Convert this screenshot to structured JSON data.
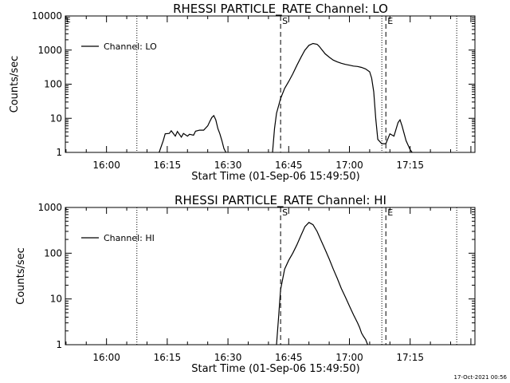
{
  "chart_data": [
    {
      "type": "line",
      "title": "RHESSI PARTICLE_RATE Channel: LO",
      "xlabel": "Start Time (01-Sep-06 15:49:50)",
      "ylabel": "Counts/sec",
      "yscale": "log",
      "xlim": [
        "15:49:50",
        "17:31:00"
      ],
      "ylim": [
        1,
        10000
      ],
      "x_ticks": [
        "16:00",
        "16:15",
        "16:30",
        "16:45",
        "17:00",
        "17:15"
      ],
      "y_ticks": [
        "1",
        "10",
        "100",
        "1000",
        "10000"
      ],
      "legend": {
        "label": "Channel: LO",
        "position": "top-left"
      },
      "grid": false,
      "markers": [
        {
          "time": "16:07:30",
          "style": "dotted",
          "label": ""
        },
        {
          "time": "16:43:00",
          "style": "dashed",
          "label": "S"
        },
        {
          "time": "17:08:00",
          "style": "dotted",
          "label": ""
        },
        {
          "time": "17:09:00",
          "style": "dashed",
          "label": "E"
        },
        {
          "time": "17:26:30",
          "style": "dotted",
          "label": ""
        }
      ],
      "series": [
        {
          "name": "Channel: LO",
          "segments": [
            {
              "x": [
                "16:13:00",
                "16:14:00",
                "16:14:30",
                "16:15:30",
                "16:16:00",
                "16:17:00",
                "16:17:30",
                "16:18:30",
                "16:19:00",
                "16:20:00",
                "16:20:30",
                "16:21:30",
                "16:22:00",
                "16:23:00",
                "16:24:00",
                "16:25:00",
                "16:25:30",
                "16:26:00",
                "16:26:30",
                "16:27:00",
                "16:27:30",
                "16:28:00",
                "16:28:30",
                "16:29:00",
                "16:29:30"
              ],
              "y": [
                1,
                2.2,
                3.5,
                3.6,
                4.3,
                3.0,
                4.1,
                2.8,
                3.6,
                3.0,
                3.4,
                3.2,
                4.2,
                4.5,
                4.5,
                6.0,
                8.0,
                10.5,
                12.0,
                9.0,
                5.0,
                3.5,
                2.2,
                1.3,
                1
              ]
            },
            {
              "x": [
                "16:41:00",
                "16:41:30",
                "16:42:00",
                "16:43:00",
                "16:44:00",
                "16:45:00",
                "16:46:00",
                "16:47:00",
                "16:48:00",
                "16:49:00",
                "16:50:00",
                "16:51:00",
                "16:52:00",
                "16:52:30",
                "16:53:00",
                "16:54:00",
                "16:55:00",
                "16:56:00",
                "16:57:00",
                "16:58:00",
                "16:59:00",
                "17:00:00",
                "17:01:00",
                "17:02:00",
                "17:03:00",
                "17:04:00",
                "17:05:00",
                "17:05:30",
                "17:06:00",
                "17:06:30",
                "17:07:00",
                "17:08:00",
                "17:09:00",
                "17:10:00",
                "17:11:00",
                "17:12:00",
                "17:12:30",
                "17:13:00",
                "17:14:00",
                "17:15:00",
                "17:15:30"
              ],
              "y": [
                1,
                5,
                14,
                38,
                75,
                120,
                200,
                350,
                600,
                1000,
                1380,
                1560,
                1480,
                1300,
                1100,
                780,
                620,
                510,
                450,
                410,
                380,
                360,
                340,
                330,
                310,
                280,
                230,
                150,
                60,
                10,
                2.4,
                1.8,
                1.8,
                3.5,
                3.0,
                7.5,
                9.0,
                6.0,
                2.2,
                1.2,
                1
              ]
            }
          ]
        }
      ],
      "right_edge_labels": [
        "E",
        "-"
      ]
    },
    {
      "type": "line",
      "title": "RHESSI PARTICLE_RATE Channel: HI",
      "xlabel": "Start Time (01-Sep-06 15:49:50)",
      "ylabel": "Counts/sec",
      "yscale": "log",
      "xlim": [
        "15:49:50",
        "17:31:00"
      ],
      "ylim": [
        1,
        1000
      ],
      "x_ticks": [
        "16:00",
        "16:15",
        "16:30",
        "16:45",
        "17:00",
        "17:15"
      ],
      "y_ticks": [
        "1",
        "10",
        "100",
        "1000"
      ],
      "legend": {
        "label": "Channel: HI",
        "position": "top-left"
      },
      "grid": false,
      "markers": [
        {
          "time": "16:07:30",
          "style": "dotted",
          "label": ""
        },
        {
          "time": "16:43:00",
          "style": "dashed",
          "label": "S"
        },
        {
          "time": "17:08:00",
          "style": "dotted",
          "label": ""
        },
        {
          "time": "17:09:00",
          "style": "dashed",
          "label": "E"
        },
        {
          "time": "17:26:30",
          "style": "dotted",
          "label": ""
        }
      ],
      "series": [
        {
          "name": "Channel: HI",
          "segments": [
            {
              "x": [
                "16:42:00",
                "16:42:30",
                "16:43:00",
                "16:44:00",
                "16:45:00",
                "16:46:00",
                "16:47:00",
                "16:48:00",
                "16:49:00",
                "16:50:00",
                "16:51:00",
                "16:52:00",
                "16:53:00",
                "16:54:00",
                "16:55:00",
                "16:56:00",
                "16:57:00",
                "16:58:00",
                "16:59:00",
                "17:00:00",
                "17:01:00",
                "17:02:00",
                "17:02:30",
                "17:03:00",
                "17:03:30",
                "17:04:00",
                "17:04:30"
              ],
              "y": [
                1,
                4,
                16,
                45,
                70,
                100,
                150,
                240,
                380,
                470,
                420,
                300,
                190,
                120,
                75,
                45,
                28,
                17,
                11,
                7,
                4.5,
                3,
                2.4,
                1.8,
                1.5,
                1.3,
                1
              ]
            }
          ]
        }
      ]
    }
  ],
  "footer": {
    "timestamp": "17-Oct-2021 00:56"
  }
}
